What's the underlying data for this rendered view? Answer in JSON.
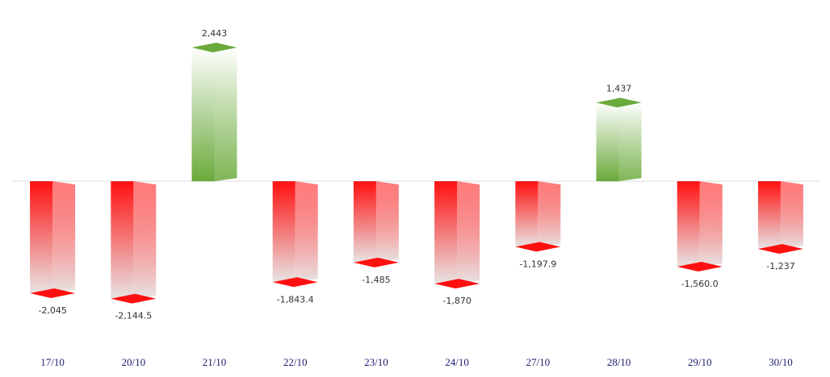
{
  "chart_data": {
    "type": "bar",
    "categories": [
      "17/10",
      "20/10",
      "21/10",
      "22/10",
      "23/10",
      "24/10",
      "27/10",
      "28/10",
      "29/10",
      "30/10"
    ],
    "values": [
      -2045,
      -2144.5,
      2443,
      -1843.4,
      -1485,
      -1870,
      -1197.9,
      1437,
      -1560.0,
      -1237
    ],
    "value_labels": [
      "-2,045",
      "-2,144.5",
      "2,443",
      "-1,843.4",
      "-1,485",
      "-1,870",
      "-1,197.9",
      "1,437",
      "-1,560.0",
      "-1,237"
    ],
    "positive_color": "#6aaa3a",
    "negative_color": "#ff1010"
  }
}
